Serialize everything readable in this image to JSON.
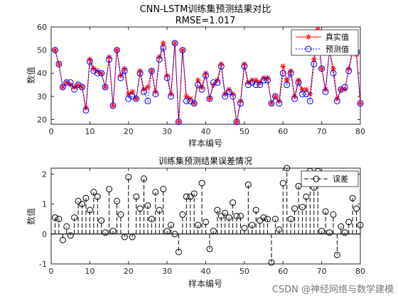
{
  "watermark": "CSDN @神经网络与数学建模",
  "chart_data": [
    {
      "type": "line",
      "title": "CNN-LSTM训练集预测结果对比",
      "subtitle": "RMSE=1.017",
      "xlabel": "样本编号",
      "ylabel": "数值",
      "xlim": [
        0,
        80
      ],
      "ylim": [
        18,
        60
      ],
      "xticks": [
        0,
        10,
        20,
        30,
        40,
        50,
        60,
        70,
        80
      ],
      "yticks": [
        20,
        30,
        40,
        50,
        60
      ],
      "grid": false,
      "legend_position": "top-right",
      "x": [
        1,
        2,
        3,
        4,
        5,
        6,
        7,
        8,
        9,
        10,
        11,
        12,
        13,
        14,
        15,
        16,
        17,
        18,
        19,
        20,
        21,
        22,
        23,
        24,
        25,
        26,
        27,
        28,
        29,
        30,
        31,
        32,
        33,
        34,
        35,
        36,
        37,
        38,
        39,
        40,
        41,
        42,
        43,
        44,
        45,
        46,
        47,
        48,
        49,
        50,
        51,
        52,
        53,
        54,
        55,
        56,
        57,
        58,
        59,
        60,
        61,
        62,
        63,
        64,
        65,
        66,
        67,
        68,
        69,
        70,
        71,
        72,
        73,
        74,
        75,
        76,
        77,
        78,
        79,
        80
      ],
      "series": [
        {
          "name": "真实值",
          "color": "#ff0000",
          "marker": "asterisk",
          "values": [
            50,
            44,
            34,
            36,
            35,
            34,
            35,
            34,
            25,
            46,
            42,
            41,
            40,
            34,
            47,
            26,
            50,
            39,
            42,
            31,
            32,
            29,
            41,
            33,
            34,
            41,
            32,
            47,
            53,
            39,
            31,
            53,
            19,
            50,
            30,
            29,
            27,
            37,
            34,
            40,
            29,
            35,
            37,
            44,
            31,
            33,
            31,
            19,
            28,
            44,
            36,
            37,
            37,
            36,
            38,
            38,
            27,
            30,
            28,
            43,
            37,
            41,
            30,
            37,
            33,
            33,
            31,
            46,
            59,
            42,
            33,
            50,
            42,
            29,
            33,
            33,
            42,
            50,
            48,
            27
          ]
        },
        {
          "name": "预测值",
          "color": "#0000ff",
          "marker": "circle",
          "values": [
            50,
            44,
            34,
            36,
            36,
            33,
            35,
            34,
            24,
            45,
            41,
            40,
            40,
            34,
            46,
            26,
            50,
            38,
            41,
            29,
            30,
            29,
            40,
            32,
            28,
            41,
            31,
            46,
            51,
            38,
            30,
            53,
            19,
            50,
            28,
            28,
            27,
            35,
            33,
            39,
            29,
            36,
            36,
            43,
            30,
            32,
            30,
            19,
            27,
            43,
            35,
            36,
            35,
            35,
            37,
            37,
            27,
            30,
            27,
            40,
            35,
            40,
            29,
            36,
            31,
            31,
            28,
            44,
            57,
            42,
            32,
            50,
            40,
            28,
            33,
            34,
            41,
            49,
            49,
            27
          ]
        }
      ]
    },
    {
      "type": "stem",
      "title": "训练集预测结果误差情况",
      "xlabel": "样本编号",
      "ylabel": "数值",
      "xlim": [
        0,
        80
      ],
      "ylim": [
        -1,
        2.2
      ],
      "xticks": [
        0,
        10,
        20,
        30,
        40,
        50,
        60,
        70,
        80
      ],
      "yticks": [
        -1,
        0,
        1,
        2
      ],
      "grid": false,
      "legend_position": "top-right",
      "series": [
        {
          "name": "误差",
          "color": "#000000",
          "marker": "circle",
          "x": [
            1,
            2,
            3,
            4,
            5,
            6,
            7,
            8,
            9,
            10,
            11,
            12,
            13,
            14,
            15,
            16,
            17,
            18,
            19,
            20,
            21,
            22,
            23,
            24,
            25,
            26,
            27,
            28,
            29,
            30,
            31,
            32,
            33,
            34,
            35,
            36,
            37,
            38,
            39,
            40,
            41,
            42,
            43,
            44,
            45,
            46,
            47,
            48,
            49,
            50,
            51,
            52,
            53,
            54,
            55,
            56,
            57,
            58,
            59,
            60,
            61,
            62,
            63,
            64,
            65,
            66,
            67,
            68,
            69,
            70,
            71,
            72,
            73,
            74,
            75,
            76,
            77,
            78,
            79,
            80
          ],
          "values": [
            0.55,
            0.5,
            -0.2,
            0.25,
            -0.05,
            0.55,
            1.1,
            1.0,
            1.2,
            0.8,
            1.4,
            1.25,
            0.45,
            0.05,
            1.5,
            0.1,
            1.1,
            0.65,
            -0.1,
            1.9,
            -0.1,
            1.25,
            0.85,
            1.85,
            0.95,
            0.5,
            1.4,
            0.8,
            1.5,
            0.1,
            0.3,
            0.0,
            -0.6,
            0.65,
            1.25,
            1.25,
            1.35,
            0.3,
            1.7,
            0.4,
            -0.5,
            0.1,
            0.8,
            0.6,
            0.7,
            0.55,
            1.05,
            0.6,
            0.6,
            0.2,
            1.65,
            0.3,
            0.8,
            0.45,
            0.55,
            0.5,
            -0.95,
            0.5,
            0.15,
            1.7,
            2.2,
            0.5,
            0.85,
            1.6,
            0.9,
            1.25,
            2.1,
            1.55,
            2.1,
            0.1,
            0.75,
            0.05,
            0.65,
            -0.7,
            0.25,
            0.05,
            0.4,
            1.2,
            0.85,
            0.3
          ]
        }
      ]
    }
  ]
}
